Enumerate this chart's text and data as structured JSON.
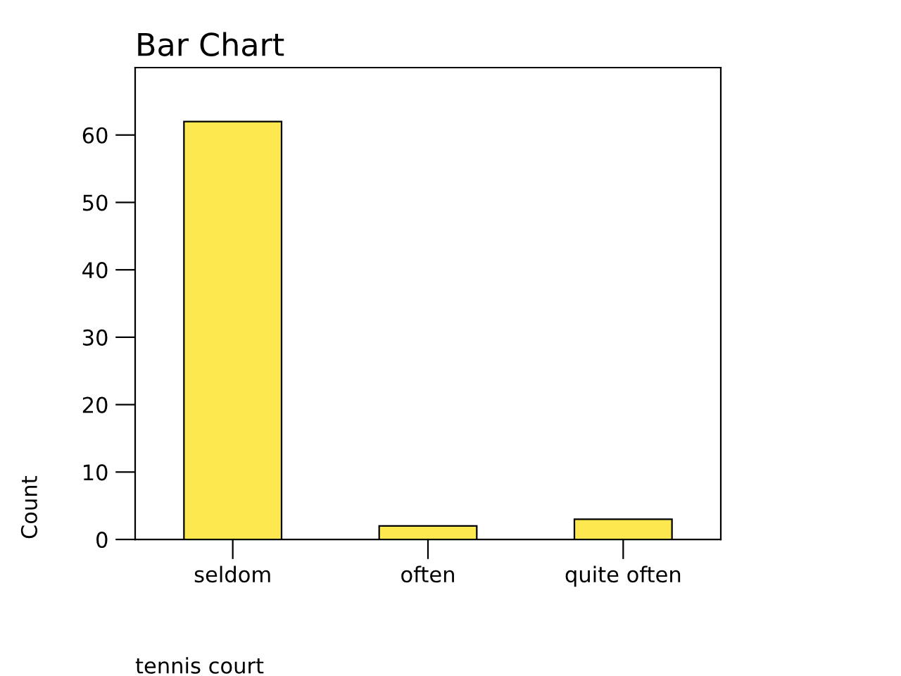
{
  "chart_data": {
    "type": "bar",
    "title": "Bar Chart",
    "xlabel": "tennis court",
    "ylabel": "Count",
    "categories": [
      "seldom",
      "often",
      "quite often"
    ],
    "values": [
      62,
      2,
      3
    ],
    "color": "#fde94f",
    "ylim": [
      0,
      70
    ],
    "yticks": [
      0,
      10,
      20,
      30,
      40,
      50,
      60
    ],
    "grid": false,
    "legend": false
  }
}
